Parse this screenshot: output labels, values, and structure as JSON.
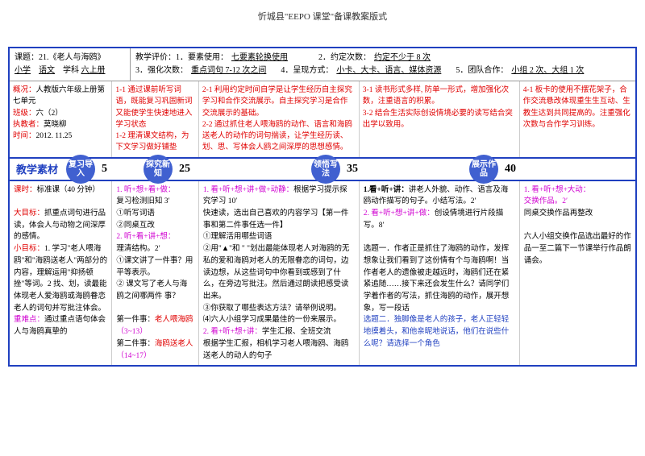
{
  "header": "忻城县\"EEPO 课堂\"备课教案版式",
  "topLeft": {
    "l1a": "课题：",
    "l1b": "21.《老人与海鸥》",
    "l2a": "小学",
    "l2b": "语文",
    "l2c": "学科",
    "l2d": "六上册"
  },
  "topRight": {
    "r1a": "教学评价：1．要素使用：",
    "r1b": "七要素轮换使用",
    "r1c": "2．约定次数：",
    "r1d": "约定不少于 8 次",
    "r2a": "3．强化次数：",
    "r2b": "重点词句 7-12 次之间",
    "r2c": "4．呈现方式：",
    "r2d": "小卡、大卡、语言、媒体资源",
    "r2e": "5．团队合作：",
    "r2f": "小组 2 次、大组 1 次"
  },
  "mid": {
    "c1": {
      "a": "概况：",
      "b": "人教版六年级上册第七单元",
      "c": "班级：",
      "d": "六（2）",
      "e": "执教者：",
      "f": "莫晓柳",
      "g": "时间：",
      "h": "2012. 11.25"
    },
    "c2": {
      "a": "1-1 通过课前听写词语，既能复习巩固新词又能使学生快速地进入学习状态",
      "b": "1-2 理清课文结构，为下文学习做好铺垫"
    },
    "c3": {
      "a": "2-1 利用约定时间自学是让学生经历自主探究学习和合作交流展示。自主探究学习是合作交流展示的基础。",
      "b": "2-2  通过抓住老人喂海鸥的动作、语言和海鸥送老人的动作的词句揣读，让学生经历读、划、思、写体会人鸥之间深厚的思想感情。"
    },
    "c4": {
      "a": "3-1 读书形式多样, 防单一形式，增加强化次数，注重语言的积累。",
      "b": "3-2  结合生活实际创设情境必要的读写结合突出学以致用。"
    },
    "c5": {
      "a": "4-1  板卡的使用不摆花架子，合作交流悬改体现重生生互动、生教生达到共同提高的。注重强化次数与合作学习训练。"
    }
  },
  "timeline": {
    "label": "教学素材",
    "s1": "复习导入",
    "n1": "5",
    "s2": "探究新知",
    "n2": "25",
    "s3": "领悟写法",
    "n3": "35",
    "s4": "展示作品",
    "n4": "40"
  },
  "content": {
    "c1": {
      "a": "课时：",
      "b": "标准课（40 分钟）",
      "c": "大目标：",
      "d": "抓重点词句进行品读，体会人与动物之间深厚的感情。",
      "e": "小目标：",
      "f": "1. 学习\"老人喂海鸥\"和\"海鸥送老人\"两部分的内容，理解运用\"抑扬顿挫\"等词。2 找、划，读最能体现老人爱海鸥或海鸥眷恋老人的词句并写批注体会。",
      "g": "重难点：",
      "h": "通过重点语句体会人与海鸥真挚的"
    },
    "c2": {
      "a": "1. 听+想+看+做：",
      "b": "复习检测旧知 3′",
      "c": "①听写词语",
      "d": "②同桌互改",
      "e": "2. 听+看+讲+想：",
      "f": "理清结构。2′",
      "g": "①课文讲了一件事？用平等表示。",
      "h": "② 课文写了老人与海鸥之间哪两件  事？",
      "i": "第一件事：",
      "j": "老人喂海鸥",
      "k": "（3~13）",
      "l": "第二件事：",
      "m": "海鸥送老人",
      "n": "（14~17）"
    },
    "c3": {
      "a": "1.  看+听+想+讲+做+动静：",
      "b": "根据学习提示探究学习 10′",
      "c": "快速读，选出自己喜欢的内容学习【第一件事和第二件事任选一件】",
      "d": "①理解活用哪些词语",
      "e": "②用\"▲\"和 \"        \"划出最能体现老人对海鸥的无私的爱和海鸥对老人的无限眷恋的词句，边读边想，从这些词句中你看到或感到了什么，在旁边写批注。然后通过朗读把感受读出来。",
      "f": "③你获取了哪些表达方法？请举例说明。",
      "g": "⑷六人小组学习成果最佳的一份来展示。",
      "h": "2. 看+听+想+讲：",
      "i": "学生汇报、全班交流",
      "j": "根据学生汇报，相机学习老人喂海鸥、海鸥送老人的动人的句子"
    },
    "c4": {
      "a": "1.看+听+讲：",
      "b": "讲老人外貌、动作、语言及海鸥动作描写的句子。小结写法。2′",
      "c": "2. 看+听+想+讲+做：",
      "d": "创设情境进行片段描写。8′",
      "e": "选题一．作者正是抓住了海鸥的动作，发挥想象让我们看到了这份情有个与海鸥啊！当作者老人的遗像被走越远时，海鸥们还在紧紧追随……接下来还会发生什么？请同学们学着作者的写法，抓住海鸥的动作，展开想象，写一段话",
      "f": "选题二．独脚像是老人的孩子，老人正轻轻地摸着头，和他亲昵地说话，他们在说些什么呢？请选择一个角色"
    },
    "c5": {
      "a": "1. 看+听+想+大动：",
      "b": "交换作品。2′",
      "c": "同桌交换作品再整改",
      "d": "六人小组交换作品选出最好的作品一至二篇下一节课举行作品朗诵会。"
    }
  }
}
